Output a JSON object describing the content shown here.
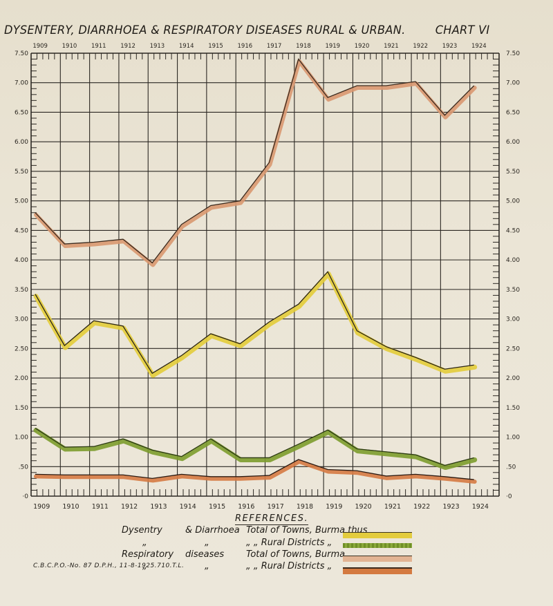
{
  "chart_data": {
    "type": "line",
    "title": "DYSENTERY, DIARRHOEA & RESPIRATORY DISEASES RURAL & URBAN.",
    "chart_label": "CHART VI",
    "xlabel": "",
    "ylabel": "",
    "x": [
      1909,
      1910,
      1911,
      1912,
      1913,
      1914,
      1915,
      1916,
      1917,
      1918,
      1919,
      1920,
      1921,
      1922,
      1923,
      1924
    ],
    "ylim": [
      0,
      7.5
    ],
    "y_ticks": [
      "·0",
      ".50",
      "1.00",
      "1.50",
      "2.00",
      "2.50",
      "3.00",
      "3.50",
      "4.00",
      "4.50",
      "5.00",
      "5.50",
      "6.00",
      "6.50",
      "7.00",
      "7.50"
    ],
    "y_tick_values": [
      0,
      0.5,
      1.0,
      1.5,
      2.0,
      2.5,
      3.0,
      3.5,
      4.0,
      4.5,
      5.0,
      5.5,
      6.0,
      6.5,
      7.0,
      7.5
    ],
    "grid": true,
    "legend_position": "bottom",
    "series": [
      {
        "name": "Dysentery & Diarrhoea Total of Towns, Burma",
        "color": "#e2cc3a",
        "values": [
          3.42,
          2.55,
          2.97,
          2.88,
          2.08,
          2.38,
          2.75,
          2.58,
          2.95,
          3.25,
          3.8,
          2.8,
          2.53,
          2.35,
          2.15,
          2.22
        ]
      },
      {
        "name": "Dysentery & Diarrhoea Rural Districts",
        "color": "#7a9a2c",
        "values": [
          1.15,
          0.83,
          0.84,
          0.97,
          0.78,
          0.67,
          0.97,
          0.65,
          0.65,
          0.88,
          1.12,
          0.8,
          0.75,
          0.7,
          0.52,
          0.65
        ]
      },
      {
        "name": "Respiratory diseases Total of Towns, Burma",
        "color": "#d99a72",
        "values": [
          4.8,
          4.27,
          4.3,
          4.35,
          3.95,
          4.6,
          4.92,
          5.0,
          5.65,
          7.4,
          6.75,
          6.95,
          6.95,
          7.02,
          6.45,
          6.95
        ]
      },
      {
        "name": "Respiratory diseases Rural Districts",
        "color": "#d2773c",
        "values": [
          0.37,
          0.36,
          0.36,
          0.36,
          0.3,
          0.37,
          0.33,
          0.33,
          0.35,
          0.62,
          0.45,
          0.43,
          0.34,
          0.37,
          0.33,
          0.28
        ]
      }
    ]
  },
  "header": {
    "title": "DYSENTERY, DIARRHOEA & RESPIRATORY DISEASES RURAL & URBAN.",
    "chart_label": "CHART VI"
  },
  "axes": {
    "top_years": [
      "1909",
      "1910",
      "1911",
      "1912",
      "1913",
      "1914",
      "1915",
      "1916",
      "1917",
      "1918",
      "1919",
      "1920",
      "1921",
      "1922",
      "1923",
      "1924"
    ],
    "bottom_years": [
      "1909",
      "1910",
      "1911",
      "1912",
      "1913",
      "1914",
      "1915",
      "1916",
      "1917",
      "1918",
      "1919",
      "1920",
      "1921",
      "1922",
      "1923",
      "1924"
    ],
    "left_labels": [
      "7.50",
      "7.00",
      "6.50",
      "6.00",
      "5.50",
      "5.00",
      "4.50",
      "4.00",
      "3.50",
      "3.00",
      "2.50",
      "2.00",
      "1.50",
      "1.00",
      ".50",
      "·0"
    ],
    "right_labels": [
      "7.50",
      "7.00",
      "6.50",
      "6.00",
      "5.50",
      "5.00",
      "4.50",
      "4.00",
      "3.50",
      "3.00",
      "2.50",
      "2.00",
      "1.50",
      "1.00",
      ".50",
      "·0"
    ]
  },
  "legend": {
    "title": "REFERENCES.",
    "rows": [
      {
        "col1": "Dysentry",
        "col2": "& Diarrhoea",
        "col3": "Total of Towns, Burma thus",
        "swatch": "yellow"
      },
      {
        "col1": "„",
        "col2": "„",
        "col3": "„  „  Rural Districts  „",
        "swatch": "green"
      },
      {
        "col1": "Respiratory",
        "col2": "diseases",
        "col3": "Total of Towns, Burma „",
        "swatch": "light-orange"
      },
      {
        "col1": "„",
        "col2": "„",
        "col3": "„  „  Rural Districts  „",
        "swatch": "dark-orange"
      }
    ]
  },
  "footer": {
    "imprint": "C.B.C.P.O.-No. 87 D.P.H., 11-8-1925.710.T.L."
  }
}
